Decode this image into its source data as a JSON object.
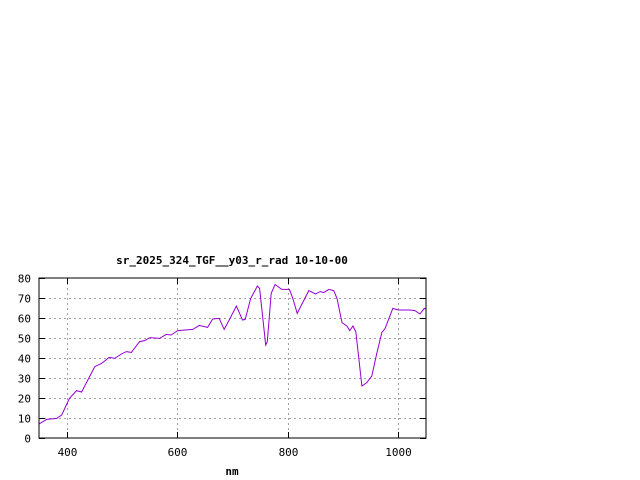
{
  "chart_data": {
    "type": "line",
    "title": "sr_2025_324_TGF__y03_r_rad 10-10-00",
    "xlabel": "nm",
    "ylabel": "",
    "xlim": [
      350,
      1050
    ],
    "ylim": [
      0,
      80
    ],
    "xticks": [
      400,
      600,
      800,
      1000
    ],
    "yticks": [
      0,
      10,
      20,
      30,
      40,
      50,
      60,
      70,
      80
    ],
    "grid": true,
    "legend": "none",
    "series": [
      {
        "color": "#9400d3",
        "x": [
          350,
          364,
          382,
          391,
          405,
          418,
          427,
          451,
          463,
          477,
          487,
          499,
          508,
          517,
          532,
          541,
          551,
          568,
          580,
          589,
          601,
          628,
          640,
          655,
          664,
          676,
          685,
          694,
          707,
          718,
          723,
          733,
          745,
          749,
          760,
          763,
          770,
          777,
          789,
          803,
          809,
          817,
          838,
          850,
          859,
          865,
          874,
          883,
          889,
          898,
          907,
          912,
          918,
          923,
          928,
          934,
          943,
          952,
          961,
          970,
          976,
          990,
          1000,
          1021,
          1030,
          1039,
          1047,
          1050
        ],
        "y": [
          7,
          9.3,
          9.8,
          11.5,
          19.8,
          23.7,
          23,
          35.7,
          37.3,
          40.3,
          39.8,
          42,
          43.2,
          42.8,
          48.2,
          48.7,
          50.2,
          49.8,
          51.8,
          51.5,
          53.7,
          54.3,
          56.3,
          55.3,
          59.5,
          59.8,
          54.3,
          59,
          66,
          59,
          59.3,
          69.8,
          76,
          74.8,
          46.5,
          48.2,
          72.3,
          76.8,
          74.3,
          74.3,
          69.8,
          62.3,
          73.7,
          72,
          73.2,
          72.7,
          74.3,
          73.7,
          69.8,
          57.7,
          56,
          53.7,
          56,
          53.2,
          40.7,
          26,
          27.7,
          31,
          42.3,
          52.7,
          54.8,
          64.8,
          64,
          64,
          63.7,
          62,
          64.8,
          64.5
        ]
      }
    ]
  }
}
